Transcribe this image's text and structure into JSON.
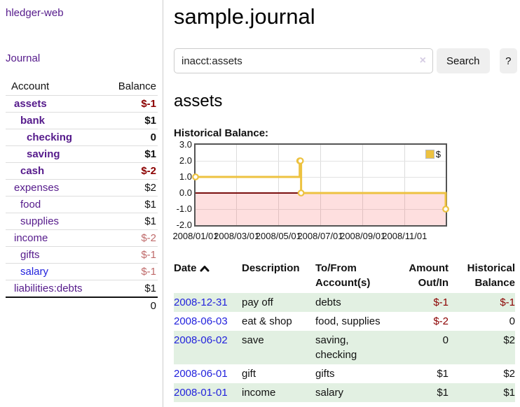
{
  "sidebar": {
    "app_title": "hledger-web",
    "journal_link": "Journal",
    "accounts_header": {
      "account": "Account",
      "balance": "Balance"
    },
    "accounts": [
      {
        "name": "assets",
        "level": 0,
        "bold": true,
        "blue": false,
        "balance": "$-1",
        "neg": "dark"
      },
      {
        "name": "bank",
        "level": 1,
        "bold": true,
        "blue": false,
        "balance": "$1",
        "neg": null
      },
      {
        "name": "checking",
        "level": 2,
        "bold": true,
        "blue": false,
        "balance": "0",
        "neg": null
      },
      {
        "name": "saving",
        "level": 2,
        "bold": true,
        "blue": false,
        "balance": "$1",
        "neg": null
      },
      {
        "name": "cash",
        "level": 1,
        "bold": true,
        "blue": false,
        "balance": "$-2",
        "neg": "dark"
      },
      {
        "name": "expenses",
        "level": 0,
        "bold": false,
        "blue": false,
        "balance": "$2",
        "neg": null
      },
      {
        "name": "food",
        "level": 1,
        "bold": false,
        "blue": false,
        "balance": "$1",
        "neg": null
      },
      {
        "name": "supplies",
        "level": 1,
        "bold": false,
        "blue": false,
        "balance": "$1",
        "neg": null
      },
      {
        "name": "income",
        "level": 0,
        "bold": false,
        "blue": false,
        "balance": "$-2",
        "neg": "light"
      },
      {
        "name": "gifts",
        "level": 1,
        "bold": false,
        "blue": false,
        "balance": "$-1",
        "neg": "light"
      },
      {
        "name": "salary",
        "level": 1,
        "bold": false,
        "blue": true,
        "balance": "$-1",
        "neg": "light"
      },
      {
        "name": "liabilities:debts",
        "level": 0,
        "bold": false,
        "blue": false,
        "balance": "$1",
        "neg": null
      }
    ],
    "total": "0"
  },
  "main": {
    "title": "sample.journal",
    "search": {
      "value": "inacct:assets",
      "clear_icon": "×",
      "search_button": "Search",
      "help_button": "?"
    },
    "account_heading": "assets",
    "chart_title": "Historical Balance:"
  },
  "chart_data": {
    "type": "line",
    "style": "step",
    "title": "Historical Balance:",
    "series": [
      {
        "name": "$",
        "color": "#EDC240",
        "points": [
          [
            "2008-01-01",
            1
          ],
          [
            "2008-06-01",
            2
          ],
          [
            "2008-06-02",
            2
          ],
          [
            "2008-06-03",
            0
          ],
          [
            "2008-12-31",
            -1
          ]
        ]
      }
    ],
    "xmin": "2008-01-01",
    "xmax": "2008-12-31",
    "ylim": [
      -2,
      3
    ],
    "y_ticks": [
      {
        "value": 3,
        "label": "3.0"
      },
      {
        "value": 2,
        "label": "2.0"
      },
      {
        "value": 1,
        "label": "1.0"
      },
      {
        "value": 0,
        "label": "0.0"
      },
      {
        "value": -1,
        "label": "-1.0"
      },
      {
        "value": -2,
        "label": "-2.0"
      }
    ],
    "x_ticks": [
      {
        "date": "2008-01-01",
        "label": "2008/01/01"
      },
      {
        "date": "2008-03-01",
        "label": "2008/03/01"
      },
      {
        "date": "2008-05-01",
        "label": "2008/05/01"
      },
      {
        "date": "2008-07-01",
        "label": "2008/07/01"
      },
      {
        "date": "2008-09-01",
        "label": "2008/09/01"
      },
      {
        "date": "2008-11-01",
        "label": "2008/11/01"
      }
    ],
    "legend": {
      "label": "$",
      "position": "top-right"
    },
    "grid": true,
    "negative_region_color": "#FBDADA",
    "zero_line_color": "#7A0E0E"
  },
  "register": {
    "headers": {
      "date": "Date",
      "description": "Description",
      "accounts": "To/From Account(s)",
      "amount": "Amount Out/In",
      "balance": "Historical Balance"
    },
    "sort": {
      "column": "date",
      "direction": "asc"
    },
    "rows": [
      {
        "date": "2008-12-31",
        "description": "pay off",
        "accounts": "debts",
        "amount": "$-1",
        "amount_neg": true,
        "balance": "$-1",
        "balance_neg": true
      },
      {
        "date": "2008-06-03",
        "description": "eat & shop",
        "accounts": "food, supplies",
        "amount": "$-2",
        "amount_neg": true,
        "balance": "0",
        "balance_neg": false
      },
      {
        "date": "2008-06-02",
        "description": "save",
        "accounts": "saving, checking",
        "amount": "0",
        "amount_neg": false,
        "balance": "$2",
        "balance_neg": false
      },
      {
        "date": "2008-06-01",
        "description": "gift",
        "accounts": "gifts",
        "amount": "$1",
        "amount_neg": false,
        "balance": "$2",
        "balance_neg": false
      },
      {
        "date": "2008-01-01",
        "description": "income",
        "accounts": "salary",
        "amount": "$1",
        "amount_neg": false,
        "balance": "$1",
        "balance_neg": false
      }
    ]
  },
  "colors": {
    "link_purple": "#551A8B",
    "link_blue": "#2222DD",
    "negative_dark_red": "#8B0000",
    "negative_light_red": "#BF6A6A",
    "row_stripe_green": "#E2F0E2",
    "series_gold": "#EDC240",
    "chart_negative_pink": "#FBDADA",
    "chart_zero_line": "#7A0E0E",
    "chart_border": "#545454",
    "button_bg": "#EFEFEF",
    "input_border": "#CCCCCC",
    "divider": "#CCCCCC"
  }
}
